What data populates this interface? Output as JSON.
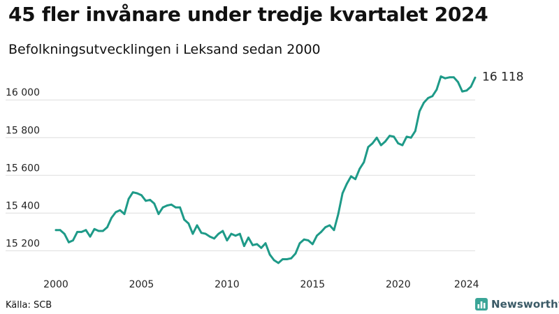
{
  "header": {
    "title": "45 fler invånare under tredje kvartalet 2024",
    "subtitle": "Befolkningsutvecklingen i Leksand sedan 2000"
  },
  "footer": {
    "source": "Källa: SCB",
    "brand": "Newsworthy",
    "brand_icon": "bar-chart-logo-icon"
  },
  "colors": {
    "line": "#1e9a88",
    "grid": "#dddddd",
    "brand_icon": "#3aa597",
    "brand_text": "#3a5a66"
  },
  "chart_data": {
    "type": "line",
    "title": "45 fler invånare under tredje kvartalet 2024",
    "subtitle": "Befolkningsutvecklingen i Leksand sedan 2000",
    "xlabel": "",
    "ylabel": "",
    "xlim": [
      2000.0,
      2024.5
    ],
    "ylim": [
      15120,
      16160
    ],
    "grid": "horizontal",
    "legend": "none",
    "x_ticks": [
      {
        "value": 2000,
        "label": "2000"
      },
      {
        "value": 2005,
        "label": "2005"
      },
      {
        "value": 2010,
        "label": "2010"
      },
      {
        "value": 2015,
        "label": "2015"
      },
      {
        "value": 2020,
        "label": "2020"
      },
      {
        "value": 2024,
        "label": "2024"
      }
    ],
    "y_ticks": [
      {
        "value": 15200,
        "label": "15 200"
      },
      {
        "value": 15400,
        "label": "15 400"
      },
      {
        "value": 15600,
        "label": "15 600"
      },
      {
        "value": 15800,
        "label": "15 800"
      },
      {
        "value": 16000,
        "label": "16 000"
      }
    ],
    "end_label": "16 118",
    "series": [
      {
        "x": [
          2000.0,
          2000.25,
          2000.5,
          2000.75,
          2001.0,
          2001.25,
          2001.5,
          2001.75,
          2002.0,
          2002.25,
          2002.5,
          2002.75,
          2003.0,
          2003.25,
          2003.5,
          2003.75,
          2004.0,
          2004.25,
          2004.5,
          2004.75,
          2005.0,
          2005.25,
          2005.5,
          2005.75,
          2006.0,
          2006.25,
          2006.5,
          2006.75,
          2007.0,
          2007.25,
          2007.5,
          2007.75,
          2008.0,
          2008.25,
          2008.5,
          2008.75,
          2009.0,
          2009.25,
          2009.5,
          2009.75,
          2010.0,
          2010.25,
          2010.5,
          2010.75,
          2011.0,
          2011.25,
          2011.5,
          2011.75,
          2012.0,
          2012.25,
          2012.5,
          2012.75,
          2013.0,
          2013.25,
          2013.5,
          2013.75,
          2014.0,
          2014.25,
          2014.5,
          2014.75,
          2015.0,
          2015.25,
          2015.5,
          2015.75,
          2016.0,
          2016.25,
          2016.5,
          2016.75,
          2017.0,
          2017.25,
          2017.5,
          2017.75,
          2018.0,
          2018.25,
          2018.5,
          2018.75,
          2019.0,
          2019.25,
          2019.5,
          2019.75,
          2020.0,
          2020.25,
          2020.5,
          2020.75,
          2021.0,
          2021.25,
          2021.5,
          2021.75,
          2022.0,
          2022.25,
          2022.5,
          2022.75,
          2023.0,
          2023.25,
          2023.5,
          2023.75,
          2024.0,
          2024.25,
          2024.5
        ],
        "values": [
          15310,
          15310,
          15290,
          15245,
          15255,
          15300,
          15300,
          15310,
          15275,
          15315,
          15305,
          15305,
          15325,
          15375,
          15405,
          15415,
          15395,
          15475,
          15510,
          15505,
          15495,
          15465,
          15470,
          15450,
          15395,
          15430,
          15440,
          15445,
          15430,
          15430,
          15365,
          15345,
          15290,
          15335,
          15295,
          15290,
          15275,
          15265,
          15290,
          15305,
          15255,
          15290,
          15280,
          15290,
          15225,
          15270,
          15230,
          15235,
          15215,
          15240,
          15180,
          15150,
          15135,
          15155,
          15155,
          15160,
          15185,
          15240,
          15260,
          15255,
          15235,
          15280,
          15300,
          15325,
          15335,
          15310,
          15395,
          15505,
          15555,
          15595,
          15580,
          15635,
          15670,
          15750,
          15770,
          15800,
          15760,
          15780,
          15810,
          15805,
          15770,
          15760,
          15805,
          15800,
          15835,
          15940,
          15985,
          16010,
          16020,
          16055,
          16125,
          16115,
          16120,
          16120,
          16095,
          16045,
          16050,
          16070,
          16118
        ]
      }
    ]
  }
}
